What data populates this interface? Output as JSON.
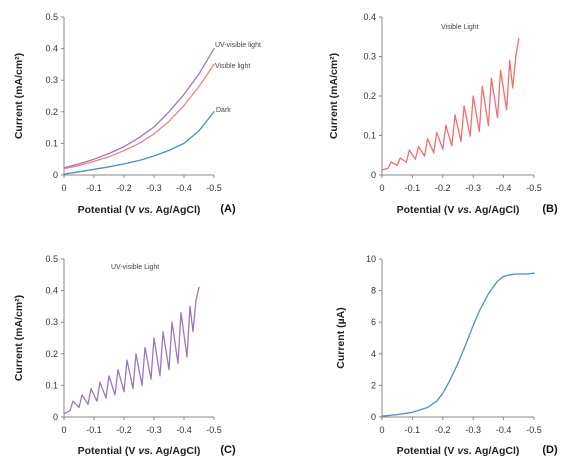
{
  "chart_data": [
    {
      "panel": "(A)",
      "type": "line",
      "xlabel": "Potential (V vs. Ag/AgCl)",
      "ylabel": "Current (mA/cm²)",
      "xlim": [
        0,
        -0.5
      ],
      "ylim": [
        0,
        0.5
      ],
      "xticks": [
        "0",
        "-0.1",
        "-0.2",
        "-0.3",
        "-0.4",
        "-0.5"
      ],
      "yticks": [
        "0",
        "0.1",
        "0.2",
        "0.3",
        "0.4",
        "0.5"
      ],
      "series": [
        {
          "name": "UV-visible light",
          "color": "#9b77c0",
          "x": [
            0,
            -0.05,
            -0.1,
            -0.15,
            -0.2,
            -0.25,
            -0.3,
            -0.35,
            -0.4,
            -0.45,
            -0.5
          ],
          "y": [
            0.023,
            0.035,
            0.05,
            0.068,
            0.09,
            0.118,
            0.152,
            0.2,
            0.255,
            0.32,
            0.4
          ]
        },
        {
          "name": "Visible light",
          "color": "#ee8080",
          "x": [
            0,
            -0.05,
            -0.1,
            -0.15,
            -0.2,
            -0.25,
            -0.3,
            -0.35,
            -0.4,
            -0.45,
            -0.5
          ],
          "y": [
            0.02,
            0.03,
            0.043,
            0.058,
            0.077,
            0.1,
            0.13,
            0.17,
            0.22,
            0.28,
            0.35
          ]
        },
        {
          "name": "Dark",
          "color": "#4f8fc0",
          "x": [
            0,
            -0.05,
            -0.1,
            -0.15,
            -0.2,
            -0.25,
            -0.3,
            -0.35,
            -0.4,
            -0.45,
            -0.5
          ],
          "y": [
            0.003,
            0.01,
            0.018,
            0.026,
            0.035,
            0.046,
            0.06,
            0.078,
            0.1,
            0.14,
            0.2
          ]
        }
      ]
    },
    {
      "panel": "(B)",
      "type": "line",
      "annotation": "Visible Light",
      "xlabel": "Potential (V vs. Ag/AgCl)",
      "ylabel": "Current (mA/cm²)",
      "xlim": [
        0,
        -0.5
      ],
      "ylim": [
        0,
        0.4
      ],
      "xticks": [
        "0",
        "-0.1",
        "-0.2",
        "-0.3",
        "-0.4",
        "-0.5"
      ],
      "yticks": [
        "0",
        "0.1",
        "0.2",
        "0.3",
        "0.4"
      ],
      "series": [
        {
          "name": "",
          "color": "#ee6f6f",
          "x": [
            0,
            -0.02,
            -0.03,
            -0.05,
            -0.06,
            -0.08,
            -0.09,
            -0.11,
            -0.12,
            -0.14,
            -0.15,
            -0.17,
            -0.18,
            -0.2,
            -0.21,
            -0.23,
            -0.24,
            -0.26,
            -0.27,
            -0.29,
            -0.3,
            -0.32,
            -0.33,
            -0.35,
            -0.36,
            -0.38,
            -0.39,
            -0.41,
            -0.42,
            -0.43,
            -0.44,
            -0.45
          ],
          "y": [
            0.013,
            0.017,
            0.033,
            0.024,
            0.043,
            0.033,
            0.063,
            0.04,
            0.072,
            0.048,
            0.092,
            0.056,
            0.108,
            0.065,
            0.126,
            0.074,
            0.152,
            0.085,
            0.175,
            0.098,
            0.2,
            0.11,
            0.225,
            0.125,
            0.245,
            0.145,
            0.265,
            0.165,
            0.29,
            0.22,
            0.3,
            0.345
          ]
        }
      ]
    },
    {
      "panel": "(C)",
      "type": "line",
      "annotation": "UV-visible Light",
      "xlabel": "Potential (V vs. Ag/AgCl)",
      "ylabel": "Current (mA/cm²)",
      "xlim": [
        0,
        -0.5
      ],
      "ylim": [
        0,
        0.5
      ],
      "xticks": [
        "0",
        "-0.1",
        "-0.2",
        "-0.3",
        "-0.4",
        "-0.5"
      ],
      "yticks": [
        "0",
        "0.1",
        "0.2",
        "0.3",
        "0.4",
        "0.5"
      ],
      "series": [
        {
          "name": "",
          "color": "#9b77c0",
          "x": [
            0,
            -0.02,
            -0.03,
            -0.05,
            -0.06,
            -0.08,
            -0.09,
            -0.11,
            -0.12,
            -0.14,
            -0.15,
            -0.17,
            -0.18,
            -0.2,
            -0.21,
            -0.23,
            -0.24,
            -0.26,
            -0.27,
            -0.29,
            -0.3,
            -0.32,
            -0.33,
            -0.35,
            -0.36,
            -0.38,
            -0.39,
            -0.41,
            -0.42,
            -0.43,
            -0.44,
            -0.45
          ],
          "y": [
            0.01,
            0.02,
            0.05,
            0.03,
            0.07,
            0.04,
            0.09,
            0.05,
            0.11,
            0.06,
            0.13,
            0.07,
            0.15,
            0.08,
            0.18,
            0.09,
            0.2,
            0.1,
            0.22,
            0.12,
            0.25,
            0.13,
            0.27,
            0.15,
            0.3,
            0.17,
            0.33,
            0.19,
            0.35,
            0.27,
            0.37,
            0.41
          ]
        }
      ]
    },
    {
      "panel": "(D)",
      "type": "line",
      "xlabel": "Potential (V vs. Ag/AgCl)",
      "ylabel": "Current (µA)",
      "xlim": [
        0,
        -0.5
      ],
      "ylim": [
        0,
        10
      ],
      "xticks": [
        "0",
        "-0.1",
        "-0.2",
        "-0.3",
        "-0.4",
        "-0.5"
      ],
      "yticks": [
        "0",
        "2",
        "4",
        "6",
        "8",
        "10"
      ],
      "series": [
        {
          "name": "",
          "color": "#4f8fc0",
          "x": [
            0,
            -0.05,
            -0.1,
            -0.15,
            -0.18,
            -0.2,
            -0.22,
            -0.25,
            -0.28,
            -0.3,
            -0.32,
            -0.35,
            -0.38,
            -0.4,
            -0.42,
            -0.44,
            -0.46,
            -0.48,
            -0.5
          ],
          "y": [
            0.05,
            0.15,
            0.3,
            0.6,
            1.0,
            1.5,
            2.2,
            3.4,
            4.8,
            5.8,
            6.7,
            7.8,
            8.6,
            8.9,
            9.0,
            9.05,
            9.05,
            9.05,
            9.1
          ]
        }
      ]
    }
  ]
}
